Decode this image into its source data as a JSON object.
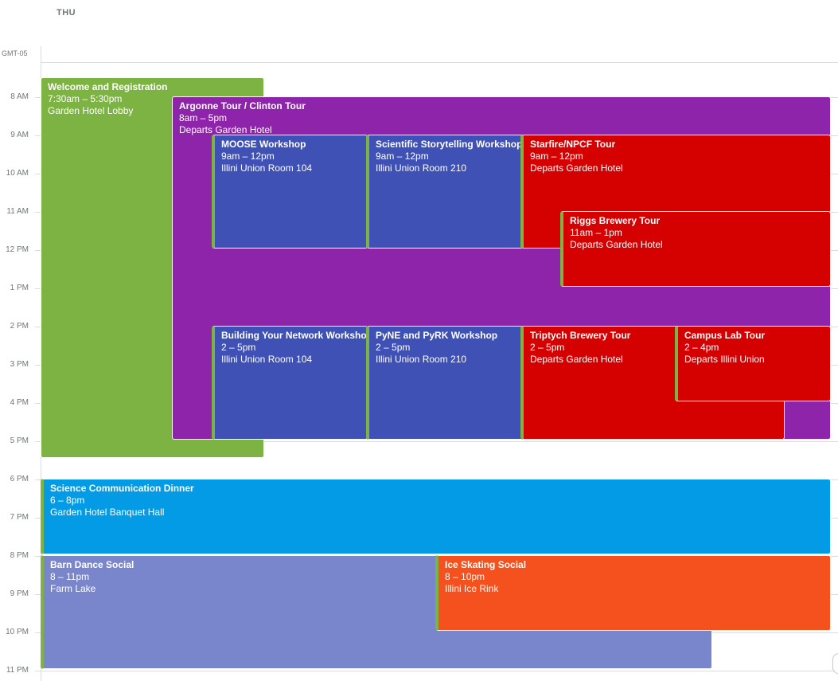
{
  "header": {
    "day": "THU",
    "timezone": "GMT-05"
  },
  "hours": [
    "8 AM",
    "9 AM",
    "10 AM",
    "11 AM",
    "12 PM",
    "1 PM",
    "2 PM",
    "3 PM",
    "4 PM",
    "5 PM",
    "6 PM",
    "7 PM",
    "8 PM",
    "9 PM",
    "10 PM",
    "11 PM"
  ],
  "colors": {
    "green": "#7cb342",
    "purple": "#8e24aa",
    "blueberry": "#3f51b5",
    "tomato": "#d50000",
    "peacock": "#039be5",
    "lavender": "#7986cb",
    "tangerine": "#f4511e"
  },
  "events": {
    "welcome": {
      "title": "Welcome and Registration",
      "time": "7:30am – 5:30pm",
      "location": "Garden Hotel Lobby"
    },
    "argonne": {
      "title": "Argonne Tour / Clinton Tour",
      "time": "8am – 5pm",
      "location": "Departs Garden Hotel"
    },
    "moose": {
      "title": "MOOSE Workshop",
      "time": "9am – 12pm",
      "location": "Illini Union Room 104"
    },
    "storytelling": {
      "title": "Scientific Storytelling Workshop",
      "time": "9am – 12pm",
      "location": "Illini Union Room 210"
    },
    "starfire": {
      "title": "Starfire/NPCF Tour",
      "time": "9am – 12pm",
      "location": "Departs Garden Hotel"
    },
    "riggs": {
      "title": "Riggs Brewery Tour",
      "time": "11am – 1pm",
      "location": "Departs Garden Hotel"
    },
    "network": {
      "title": "Building Your Network Workshop",
      "time": "2 – 5pm",
      "location": "Illini Union Room 104"
    },
    "pyne": {
      "title": "PyNE and PyRK Workshop",
      "time": "2 – 5pm",
      "location": "Illini Union Room 210"
    },
    "triptych": {
      "title": "Triptych Brewery Tour",
      "time": "2 – 5pm",
      "location": "Departs Garden Hotel"
    },
    "campus": {
      "title": "Campus Lab Tour",
      "time": "2 – 4pm",
      "location": "Departs Illini Union"
    },
    "dinner": {
      "title": "Science Communication Dinner",
      "time": "6 – 8pm",
      "location": "Garden Hotel Banquet Hall"
    },
    "barn": {
      "title": "Barn Dance Social",
      "time": "8 – 11pm",
      "location": "Farm Lake"
    },
    "skating": {
      "title": "Ice Skating Social",
      "time": "8 – 10pm",
      "location": "Illini Ice Rink"
    }
  }
}
